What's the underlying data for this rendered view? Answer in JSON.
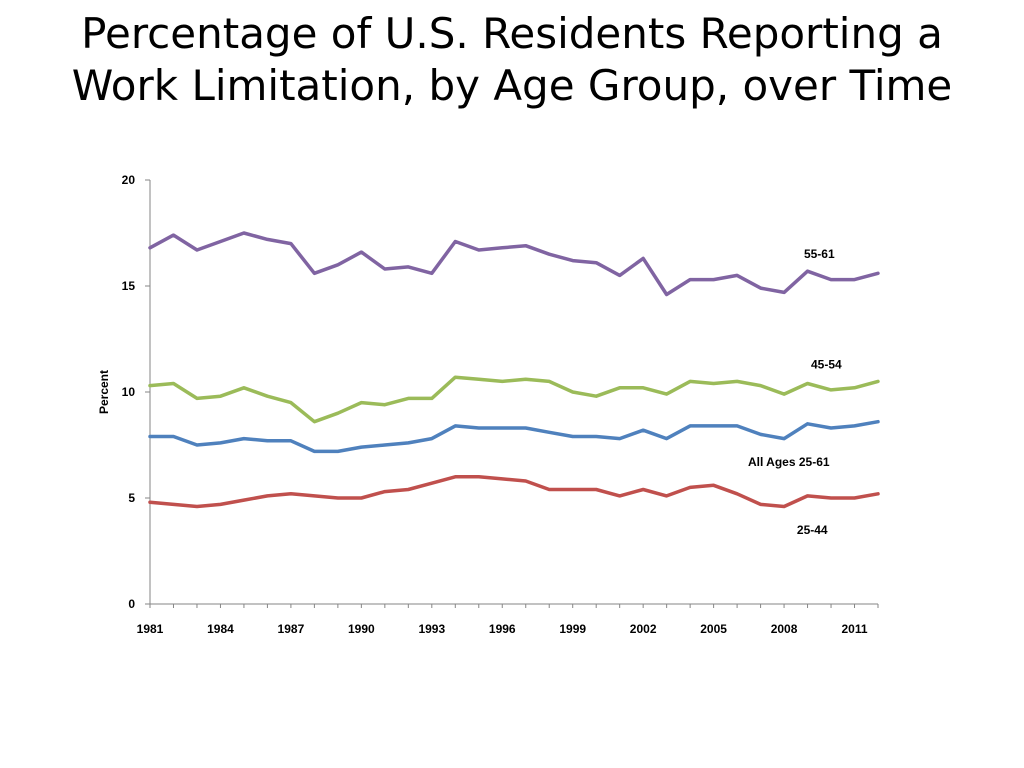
{
  "slide": {
    "title_line1": "Percentage of U.S. Residents Reporting a",
    "title_line2": "Work Limitation, by Age Group, over Time"
  },
  "chart_data": {
    "type": "line",
    "ylabel": "Percent",
    "ylim": [
      0,
      20
    ],
    "yticks": [
      0,
      5,
      10,
      15,
      20
    ],
    "xlim": [
      1981,
      2012
    ],
    "xticks": [
      1981,
      1984,
      1987,
      1990,
      1993,
      1996,
      1999,
      2002,
      2005,
      2008,
      2011
    ],
    "grid": false,
    "legend": "inline labels",
    "x": [
      1981,
      1982,
      1983,
      1984,
      1985,
      1986,
      1987,
      1988,
      1989,
      1990,
      1991,
      1992,
      1993,
      1994,
      1995,
      1996,
      1997,
      1998,
      1999,
      2000,
      2001,
      2002,
      2003,
      2004,
      2005,
      2006,
      2007,
      2008,
      2009,
      2010,
      2011,
      2012
    ],
    "series": [
      {
        "name": "55-61",
        "color": "#8064a2",
        "values": [
          16.8,
          17.4,
          16.7,
          17.1,
          17.5,
          17.2,
          17.0,
          15.6,
          16.0,
          16.6,
          15.8,
          15.9,
          15.6,
          17.1,
          16.7,
          16.8,
          16.9,
          16.5,
          16.2,
          16.1,
          15.5,
          16.3,
          14.6,
          15.3,
          15.3,
          15.5,
          14.9,
          14.7,
          15.7,
          15.3,
          15.3,
          15.6
        ],
        "label_year": 2009.5,
        "label_value": 16.5
      },
      {
        "name": "45-54",
        "color": "#9bbb59",
        "values": [
          10.3,
          10.4,
          9.7,
          9.8,
          10.2,
          9.8,
          9.5,
          8.6,
          9.0,
          9.5,
          9.4,
          9.7,
          9.7,
          10.7,
          10.6,
          10.5,
          10.6,
          10.5,
          10.0,
          9.8,
          10.2,
          10.2,
          9.9,
          10.5,
          10.4,
          10.5,
          10.3,
          9.9,
          10.4,
          10.1,
          10.2,
          10.5
        ],
        "label_year": 2009.8,
        "label_value": 11.3
      },
      {
        "name": "All Ages 25-61",
        "color": "#4f81bd",
        "values": [
          7.9,
          7.9,
          7.5,
          7.6,
          7.8,
          7.7,
          7.7,
          7.2,
          7.2,
          7.4,
          7.5,
          7.6,
          7.8,
          8.4,
          8.3,
          8.3,
          8.3,
          8.1,
          7.9,
          7.9,
          7.8,
          8.2,
          7.8,
          8.4,
          8.4,
          8.4,
          8.0,
          7.8,
          8.5,
          8.3,
          8.4,
          8.6
        ],
        "label_year": 2008.2,
        "label_value": 6.7
      },
      {
        "name": "25-44",
        "color": "#c0504d",
        "values": [
          4.8,
          4.7,
          4.6,
          4.7,
          4.9,
          5.1,
          5.2,
          5.1,
          5.0,
          5.0,
          5.3,
          5.4,
          5.7,
          6.0,
          6.0,
          5.9,
          5.8,
          5.4,
          5.4,
          5.4,
          5.1,
          5.4,
          5.1,
          5.5,
          5.6,
          5.2,
          4.7,
          4.6,
          5.1,
          5.0,
          5.0,
          5.2
        ],
        "label_year": 2009.2,
        "label_value": 3.5
      }
    ]
  }
}
